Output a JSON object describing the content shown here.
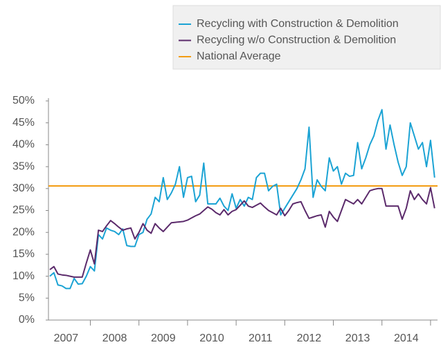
{
  "chart_data": {
    "type": "line",
    "categories": [
      null,
      null,
      null,
      null,
      "2007",
      null,
      null,
      null,
      null,
      null,
      null,
      null,
      null,
      null,
      null,
      null,
      "2008",
      null,
      null,
      null,
      null,
      null,
      null,
      null,
      null,
      null,
      null,
      null,
      "2009",
      null,
      null,
      null,
      null,
      null,
      null,
      null,
      null,
      null,
      null,
      null,
      "2010",
      null,
      null,
      null,
      null,
      null,
      null,
      null,
      null,
      null,
      null,
      null,
      "2011",
      null,
      null,
      null,
      null,
      null,
      null,
      null,
      null,
      null,
      null,
      null,
      "2012",
      null,
      null,
      null,
      null,
      null,
      null,
      null,
      null,
      null,
      null,
      null,
      "2013",
      null,
      null,
      null,
      null,
      null,
      null,
      null,
      null,
      null,
      null,
      null,
      "2014",
      null,
      null,
      null,
      null,
      null,
      null,
      null
    ],
    "series": [
      {
        "name": "Recycling with Construction & Demolition",
        "color": "#1ba3d4",
        "values": [
          10,
          10.8,
          8,
          7.8,
          7.2,
          7.2,
          9.5,
          8.2,
          8.3,
          10,
          12.2,
          11.2,
          19.5,
          18.5,
          21,
          20.5,
          20.2,
          19.5,
          20.8,
          17,
          16.8,
          16.8,
          19.5,
          20,
          23,
          24.2,
          28,
          27,
          32.5,
          27.5,
          29,
          31,
          35,
          28,
          32.5,
          32.8,
          27,
          28.5,
          35.8,
          26.5,
          26.5,
          26.5,
          27.8,
          26,
          25,
          28.8,
          25.5,
          27.5,
          26,
          28,
          27.5,
          32.5,
          33.5,
          33.5,
          29.5,
          30.5,
          31,
          24,
          25.5,
          27,
          28.5,
          30,
          32,
          34.5,
          44,
          28,
          32,
          30.5,
          29.5,
          37,
          34,
          35,
          31,
          33.5,
          32.8,
          33,
          40.5,
          34.5,
          37,
          40,
          42,
          45.5,
          48,
          39,
          44.5,
          40,
          36,
          33,
          35,
          45,
          42,
          39,
          40.5,
          35,
          41,
          32.5
        ]
      },
      {
        "name": "Recycling w/o Construction & Demolition",
        "color": "#5b2a6b",
        "values": [
          11.5,
          12.2,
          10.5,
          10.3,
          10.2,
          10,
          9.8,
          9.8,
          9.8,
          13,
          16,
          12.8,
          20.5,
          20.2,
          21.5,
          22.7,
          22,
          21.2,
          20.5,
          20.8,
          21,
          18.5,
          20,
          22,
          20.5,
          19.8,
          22,
          21,
          20.2,
          21.2,
          22.2,
          22.3,
          22.4,
          22.5,
          22.8,
          23.3,
          23.8,
          24.2,
          25,
          25.8,
          25.3,
          24.5,
          24,
          25.2,
          24,
          24.8,
          25.2,
          26.2,
          27.2,
          26,
          25.7,
          26.2,
          26.7,
          25.8,
          25,
          24.5,
          24,
          25.5,
          23.8,
          25,
          26.5,
          26.8,
          27,
          25,
          23.2,
          23.5,
          23.8,
          24,
          21.2,
          24.8,
          23.5,
          22.5,
          25,
          27.5,
          27,
          26.5,
          27.5,
          26.5,
          28,
          29.5,
          29.8,
          30,
          30,
          26,
          26,
          26,
          26,
          23,
          25.5,
          29.5,
          27.5,
          28.8,
          27.5,
          26.5,
          30.2,
          25.5
        ]
      }
    ],
    "reference_line": {
      "name": "National Average",
      "color": "#f39c12",
      "value": 30.6
    },
    "ylim": [
      0,
      50
    ],
    "yticks": [
      {
        "value": 0,
        "label": "0%"
      },
      {
        "value": 5,
        "label": "5%"
      },
      {
        "value": 10,
        "label": "10%"
      },
      {
        "value": 15,
        "label": "15%"
      },
      {
        "value": 20,
        "label": "20%"
      },
      {
        "value": 25,
        "label": "25%"
      },
      {
        "value": 30,
        "label": "30%"
      },
      {
        "value": 35,
        "label": "35%"
      },
      {
        "value": 40,
        "label": "40%"
      },
      {
        "value": 45,
        "label": "45%"
      },
      {
        "value": 50,
        "label": "50%"
      }
    ],
    "legend": "top-right"
  }
}
